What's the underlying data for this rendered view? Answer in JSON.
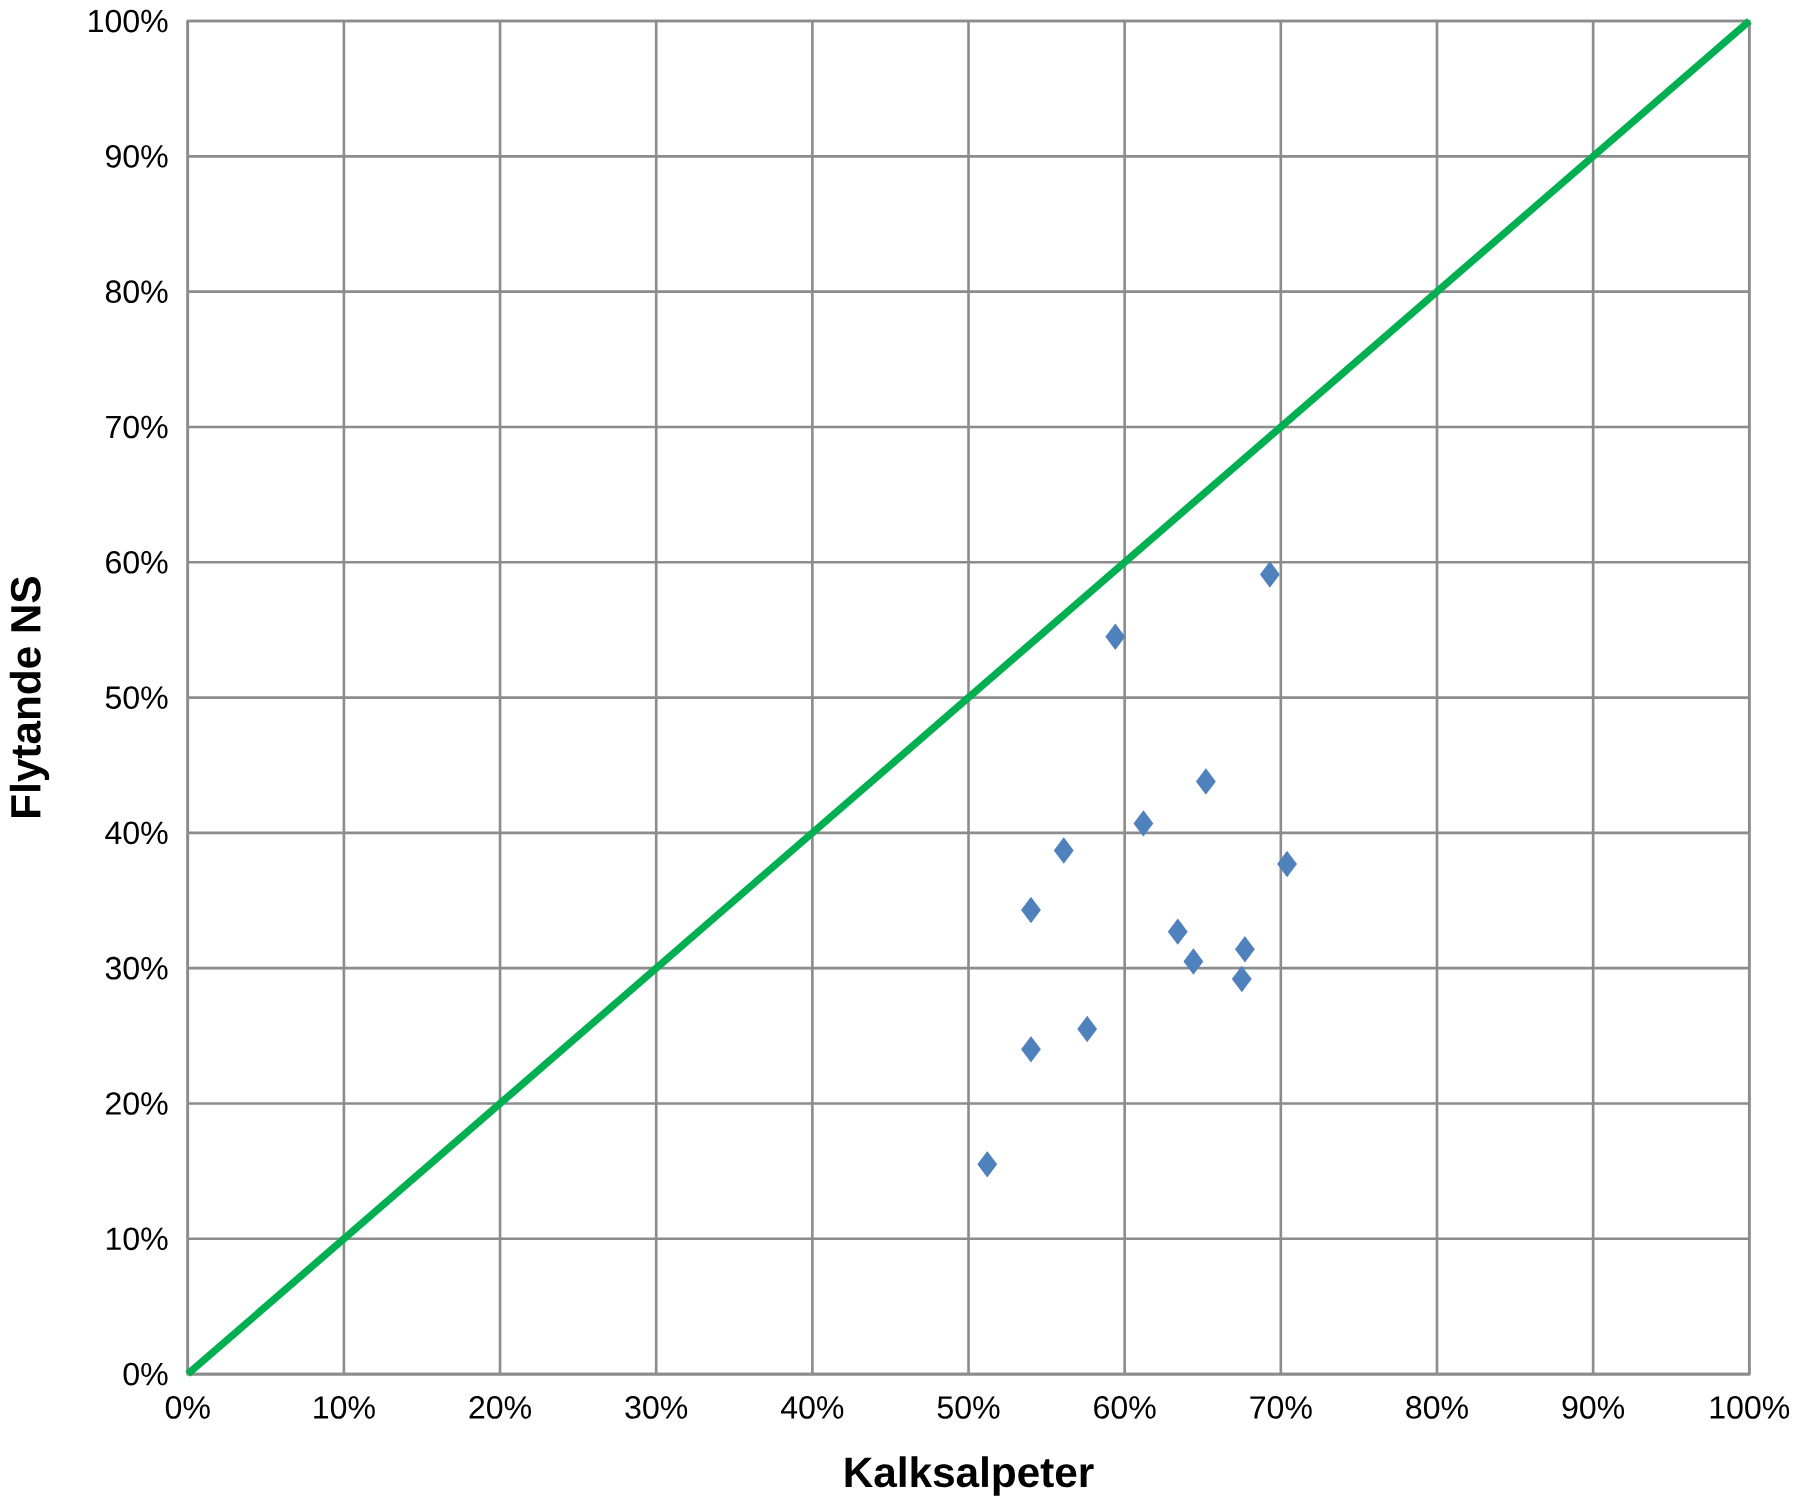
{
  "chart_data": {
    "type": "scatter",
    "xlabel": "Kalksalpeter",
    "ylabel": "Flytande NS",
    "grid": true,
    "marker": "diamond",
    "xlim": [
      0,
      100
    ],
    "ylim": [
      0,
      100
    ],
    "xticks": [
      {
        "value": 0,
        "label": "0%"
      },
      {
        "value": 10,
        "label": "10%"
      },
      {
        "value": 20,
        "label": "20%"
      },
      {
        "value": 30,
        "label": "30%"
      },
      {
        "value": 40,
        "label": "40%"
      },
      {
        "value": 50,
        "label": "50%"
      },
      {
        "value": 60,
        "label": "60%"
      },
      {
        "value": 70,
        "label": "70%"
      },
      {
        "value": 80,
        "label": "80%"
      },
      {
        "value": 90,
        "label": "90%"
      },
      {
        "value": 100,
        "label": "100%"
      }
    ],
    "yticks": [
      {
        "value": 0,
        "label": "0%"
      },
      {
        "value": 10,
        "label": "10%"
      },
      {
        "value": 20,
        "label": "20%"
      },
      {
        "value": 30,
        "label": "30%"
      },
      {
        "value": 40,
        "label": "40%"
      },
      {
        "value": 50,
        "label": "50%"
      },
      {
        "value": 60,
        "label": "60%"
      },
      {
        "value": 70,
        "label": "70%"
      },
      {
        "value": 80,
        "label": "80%"
      },
      {
        "value": 90,
        "label": "90%"
      },
      {
        "value": 100,
        "label": "100%"
      }
    ],
    "series": [
      {
        "type": "line",
        "marker": "none",
        "color": "#00b050",
        "x": [
          0,
          100
        ],
        "values": [
          0,
          100
        ]
      },
      {
        "color": "#4f81bd",
        "x": [
          69.3,
          59.4,
          65.2,
          61.2,
          56.1,
          70.4,
          54.0,
          63.4,
          67.7,
          64.4,
          67.5,
          57.6,
          54.0,
          51.2
        ],
        "values": [
          59.1,
          54.5,
          43.8,
          40.7,
          38.7,
          37.7,
          34.3,
          32.7,
          31.4,
          30.5,
          29.2,
          25.5,
          24.0,
          15.5
        ]
      }
    ]
  }
}
